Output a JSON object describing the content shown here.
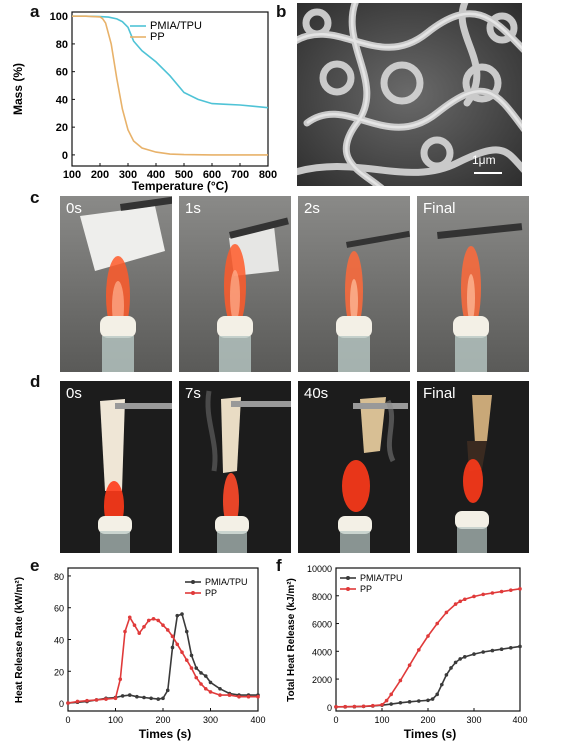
{
  "panels": {
    "a": "a",
    "b": "b",
    "c": "c",
    "d": "d",
    "e": "e",
    "f": "f"
  },
  "sem": {
    "scale_label": "1μm"
  },
  "row_c": {
    "labels": [
      "0s",
      "1s",
      "2s",
      "Final"
    ]
  },
  "row_d": {
    "labels": [
      "0s",
      "7s",
      "40s",
      "Final"
    ]
  },
  "colors": {
    "tga_pmia": "#4fc3d6",
    "tga_pp": "#e8b26a",
    "hrr_pmia": "#3a3a3a",
    "hrr_pp": "#e03a3a"
  },
  "chart_data": [
    {
      "id": "a",
      "type": "line",
      "xlabel": "Temperature (°C)",
      "ylabel": "Mass (%)",
      "xlim": [
        100,
        800
      ],
      "ylim": [
        -8,
        103
      ],
      "xticks": [
        100,
        200,
        300,
        400,
        500,
        600,
        700,
        800
      ],
      "yticks": [
        0,
        20,
        40,
        60,
        80,
        100
      ],
      "legend_position": "top-right",
      "series": [
        {
          "name": "PMIA/TPU",
          "color": "#4fc3d6",
          "x": [
            100,
            150,
            200,
            230,
            260,
            280,
            300,
            320,
            350,
            400,
            450,
            500,
            550,
            600,
            650,
            700,
            750,
            800
          ],
          "y": [
            100,
            100,
            99.7,
            99.3,
            98,
            96,
            92,
            82,
            75,
            67,
            57,
            45,
            40,
            37,
            36.5,
            36,
            35,
            34
          ]
        },
        {
          "name": "PP",
          "color": "#e8b26a",
          "x": [
            100,
            150,
            200,
            210,
            220,
            240,
            260,
            280,
            300,
            320,
            350,
            400,
            450,
            500,
            600,
            700,
            800
          ],
          "y": [
            100,
            100,
            99.5,
            98,
            95,
            80,
            55,
            33,
            18,
            10,
            5,
            2,
            0.6,
            0.2,
            0,
            0,
            0
          ]
        }
      ]
    },
    {
      "id": "e",
      "type": "line",
      "xlabel": "Times (s)",
      "ylabel": "Heat Release Rate (kW/m²)",
      "xlim": [
        0,
        400
      ],
      "ylim": [
        -5,
        85
      ],
      "xticks": [
        0,
        100,
        200,
        300,
        400
      ],
      "yticks": [
        0,
        20,
        40,
        60,
        80
      ],
      "legend_position": "top-right",
      "series": [
        {
          "name": "PMIA/TPU",
          "color": "#3a3a3a",
          "x": [
            0,
            20,
            40,
            60,
            80,
            100,
            115,
            130,
            145,
            160,
            175,
            190,
            200,
            210,
            220,
            230,
            240,
            250,
            260,
            270,
            280,
            290,
            300,
            320,
            340,
            360,
            380,
            400
          ],
          "y": [
            0,
            0.5,
            1,
            2,
            3,
            3.5,
            4.5,
            5,
            4,
            3.5,
            3,
            2.5,
            3,
            8,
            35,
            55,
            56,
            45,
            30,
            22,
            19,
            17,
            13,
            9,
            6,
            5,
            5,
            5
          ]
        },
        {
          "name": "PP",
          "color": "#e03a3a",
          "x": [
            0,
            20,
            40,
            60,
            80,
            100,
            110,
            120,
            130,
            140,
            150,
            160,
            170,
            180,
            190,
            200,
            210,
            220,
            230,
            240,
            250,
            260,
            270,
            280,
            290,
            300,
            320,
            340,
            360,
            380,
            400
          ],
          "y": [
            0,
            1,
            1.5,
            2,
            2.5,
            3,
            15,
            45,
            54,
            49,
            44,
            48,
            52,
            53,
            52,
            49,
            46,
            42,
            37,
            32,
            27,
            22,
            16,
            12,
            9,
            7,
            5,
            5,
            4,
            4,
            4
          ]
        }
      ]
    },
    {
      "id": "f",
      "type": "line",
      "xlabel": "Times (s)",
      "ylabel": "Total Heat Release (kJ/m²)",
      "xlim": [
        0,
        400
      ],
      "ylim": [
        -300,
        10000
      ],
      "xticks": [
        0,
        100,
        200,
        300,
        400
      ],
      "yticks": [
        0,
        2000,
        4000,
        6000,
        8000,
        10000
      ],
      "legend_position": "top-left",
      "series": [
        {
          "name": "PMIA/TPU",
          "color": "#3a3a3a",
          "x": [
            0,
            20,
            40,
            60,
            80,
            100,
            120,
            140,
            160,
            180,
            200,
            210,
            220,
            230,
            240,
            250,
            260,
            270,
            280,
            300,
            320,
            340,
            360,
            380,
            400
          ],
          "y": [
            0,
            0,
            10,
            30,
            60,
            120,
            200,
            290,
            360,
            420,
            470,
            560,
            900,
            1600,
            2300,
            2800,
            3200,
            3450,
            3600,
            3800,
            3950,
            4050,
            4150,
            4250,
            4350
          ]
        },
        {
          "name": "PP",
          "color": "#e03a3a",
          "x": [
            0,
            20,
            40,
            60,
            80,
            100,
            110,
            120,
            140,
            160,
            180,
            200,
            220,
            240,
            260,
            270,
            280,
            300,
            320,
            340,
            360,
            380,
            400
          ],
          "y": [
            0,
            10,
            20,
            40,
            80,
            150,
            450,
            900,
            1900,
            3000,
            4100,
            5100,
            6000,
            6800,
            7400,
            7600,
            7750,
            7950,
            8100,
            8200,
            8300,
            8400,
            8500
          ]
        }
      ]
    }
  ]
}
